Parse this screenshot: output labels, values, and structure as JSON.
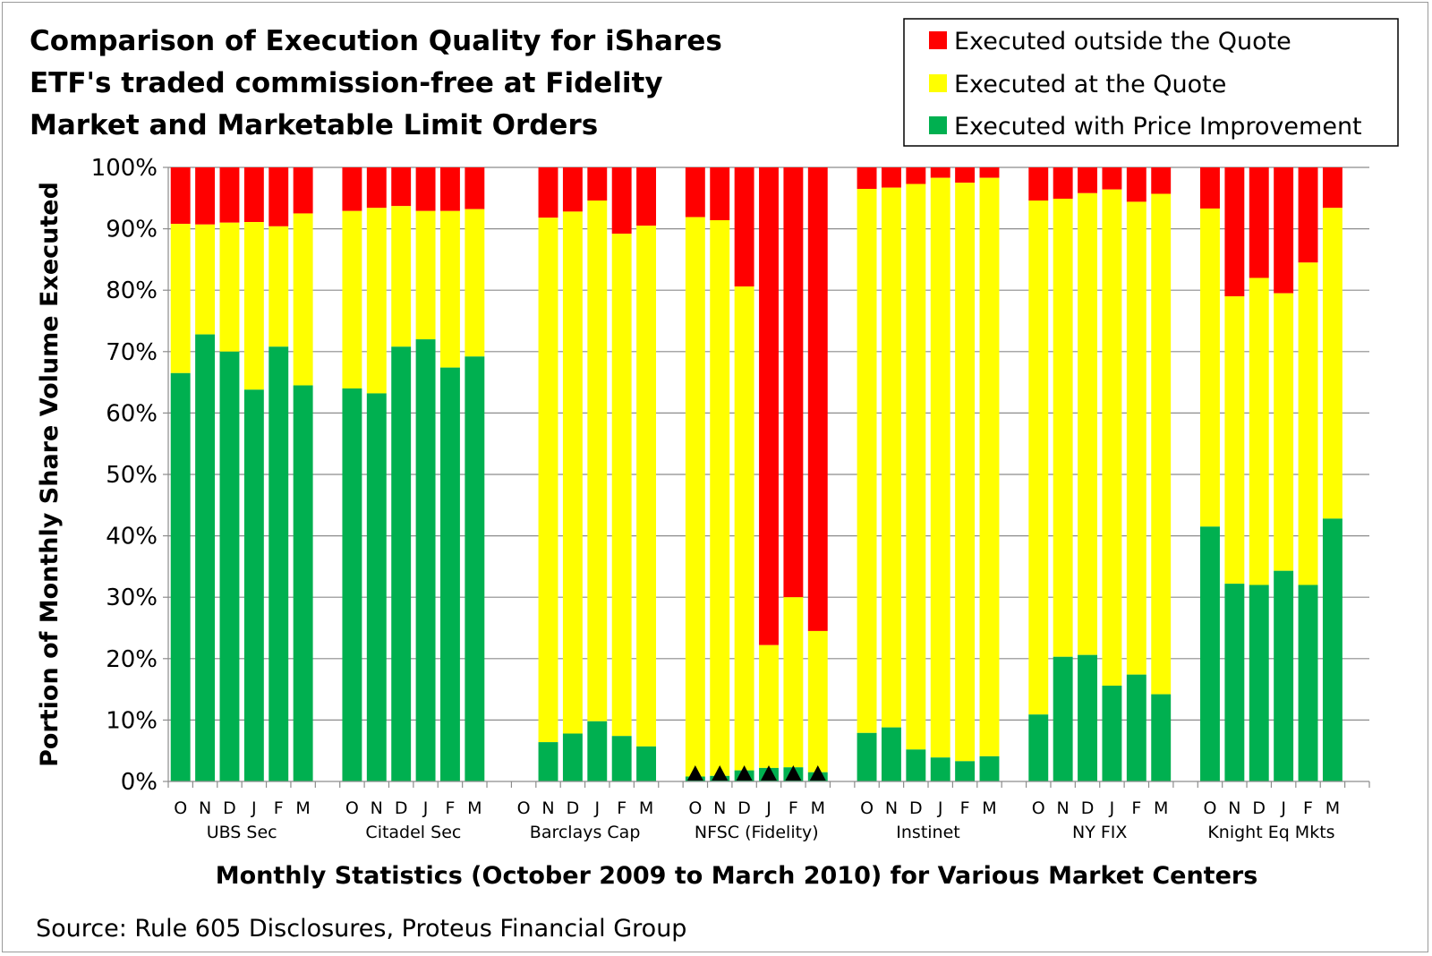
{
  "chart_data": {
    "type": "bar",
    "stacked": true,
    "title_lines": [
      "Comparison of Execution Quality for iShares",
      "ETF's traded commission-free at Fidelity",
      "Market and Marketable Limit Orders"
    ],
    "xlabel": "Monthly Statistics (October 2009 to March 2010) for Various Market Centers",
    "ylabel": "Portion of Monthly Share Volume Executed",
    "ylim": [
      0,
      100
    ],
    "yticks": [
      "0%",
      "10%",
      "20%",
      "30%",
      "40%",
      "50%",
      "60%",
      "70%",
      "80%",
      "90%",
      "100%"
    ],
    "grid": true,
    "legend_position": "top-right",
    "months": [
      "O",
      "N",
      "D",
      "J",
      "F",
      "M"
    ],
    "legend": [
      {
        "label": "Executed outside the Quote",
        "color": "#ff0000"
      },
      {
        "label": "Executed at the Quote",
        "color": "#ffff00"
      },
      {
        "label": "Executed with Price Improvement",
        "color": "#00b050"
      }
    ],
    "groups": [
      {
        "name": "UBS Sec",
        "price_improvement": [
          66.5,
          72.8,
          70.0,
          63.8,
          70.8,
          64.5
        ],
        "at_quote_cumulative": [
          90.8,
          90.7,
          91.0,
          91.1,
          90.4,
          92.5
        ]
      },
      {
        "name": "Citadel Sec",
        "price_improvement": [
          64.0,
          63.2,
          70.8,
          72.0,
          67.4,
          69.2
        ],
        "at_quote_cumulative": [
          92.9,
          93.4,
          93.7,
          92.9,
          92.9,
          93.2
        ]
      },
      {
        "name": "Barclays Cap",
        "price_improvement": [
          6.4,
          7.8,
          9.8,
          7.4,
          5.7
        ],
        "at_quote_cumulative": [
          91.8,
          92.8,
          94.6,
          89.2,
          90.5
        ],
        "months_shown": [
          "N",
          "D",
          "J",
          "F",
          "M"
        ]
      },
      {
        "name": "NFSC (Fidelity)",
        "price_improvement": [
          0.8,
          0.9,
          1.8,
          2.2,
          2.3,
          1.5
        ],
        "at_quote_cumulative": [
          91.9,
          91.4,
          80.6,
          22.2,
          30.0,
          24.5
        ],
        "markers": "triangle"
      },
      {
        "name": "Instinet",
        "price_improvement": [
          7.9,
          8.8,
          5.2,
          3.9,
          3.3,
          4.1
        ],
        "at_quote_cumulative": [
          96.5,
          96.7,
          97.3,
          98.3,
          97.5,
          98.3
        ]
      },
      {
        "name": "NY FIX",
        "price_improvement": [
          10.9,
          20.3,
          20.6,
          15.6,
          17.4,
          14.2
        ],
        "at_quote_cumulative": [
          94.6,
          94.9,
          95.8,
          96.4,
          94.4,
          95.7
        ]
      },
      {
        "name": "Knight Eq Mkts",
        "price_improvement": [
          41.5,
          32.2,
          32.0,
          34.3,
          32.0,
          42.8
        ],
        "at_quote_cumulative": [
          93.3,
          79.0,
          82.0,
          79.5,
          84.5,
          93.4
        ]
      }
    ],
    "source": "Source: Rule 605 Disclosures, Proteus Financial Group"
  }
}
